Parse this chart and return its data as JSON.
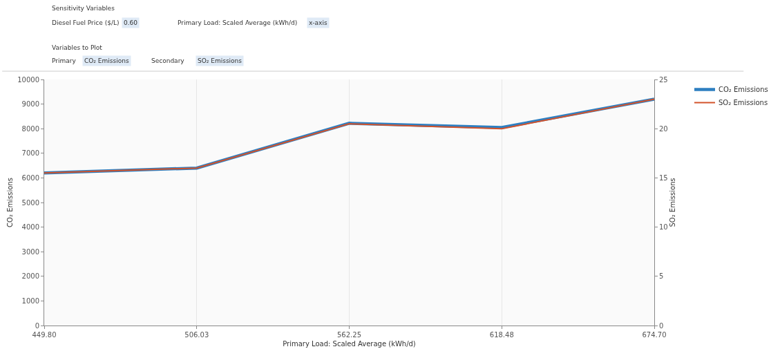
{
  "chart_data": {
    "type": "line",
    "x": [
      449.8,
      506.03,
      562.25,
      618.48,
      674.7
    ],
    "series": [
      {
        "name": "CO₂ Emissions",
        "color": "#2e7fc1",
        "values": [
          6200,
          6400,
          8220,
          8050,
          9200
        ]
      },
      {
        "name": "SO₂ Emissions",
        "color": "#d2522a",
        "axis": "y2",
        "values": [
          15.5,
          16.0,
          20.5,
          20.0,
          23.0
        ]
      }
    ],
    "xlabel": "Primary Load: Scaled Average (kWh/d)",
    "ylabel": "CO₂ Emissions",
    "y2label": "SO₂ Emissions",
    "xlim": [
      449.8,
      674.7
    ],
    "xticks": [
      {
        "value": 449.8,
        "label": "449.80"
      },
      {
        "value": 506.03,
        "label": "506.03"
      },
      {
        "value": 562.25,
        "label": "562.25"
      },
      {
        "value": 618.48,
        "label": "618.48"
      },
      {
        "value": 674.7,
        "label": "674.70"
      }
    ],
    "ylim": [
      0,
      10000
    ],
    "yticks": [
      0,
      1000,
      2000,
      3000,
      4000,
      5000,
      6000,
      7000,
      8000,
      9000,
      10000
    ],
    "y2lim": [
      0,
      25
    ],
    "y2ticks": [
      0,
      5,
      10,
      15,
      20,
      25
    ],
    "grid": "x",
    "legend": "top right",
    "marker": "none",
    "line_style": "solid",
    "annotations": [
      "Sensitivity Variables",
      "Diesel Fuel Price ($/L)",
      "0.60",
      "Primary Load: Scaled Average (kWh/d)",
      "x-axis",
      "Variables to Plot",
      "Primary",
      "CO₂ Emissions",
      "Secondary",
      "SO₂ Emissions"
    ]
  }
}
